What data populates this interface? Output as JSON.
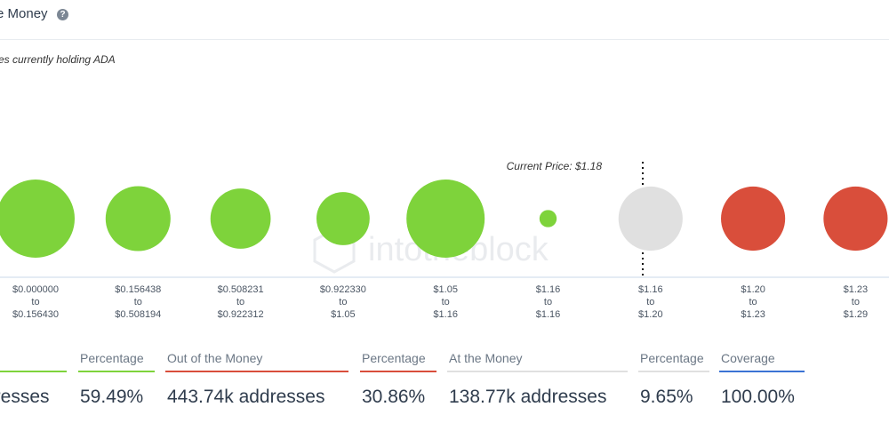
{
  "header": {
    "title": "e Money",
    "help_icon": "question-icon"
  },
  "subtitle": "es currently holding ADA",
  "stray_tick": "ı",
  "chart_data": {
    "type": "bubble",
    "current_price_label": "Current Price: $1.18",
    "watermark": "intotheblock",
    "categories": [
      [
        "$0.000000",
        "to",
        "$0.156430"
      ],
      [
        "$0.156438",
        "to",
        "$0.508194"
      ],
      [
        "$0.508231",
        "to",
        "$0.922312"
      ],
      [
        "$0.922330",
        "to",
        "$1.05"
      ],
      [
        "$1.05",
        "to",
        "$1.16"
      ],
      [
        "$1.16",
        "to",
        "$1.16"
      ],
      [
        "$1.16",
        "to",
        "$1.20"
      ],
      [
        "$1.20",
        "to",
        "$1.23"
      ],
      [
        "$1.23",
        "to",
        "$1.29"
      ]
    ],
    "status": [
      "in",
      "in",
      "in",
      "in",
      "in",
      "in",
      "at",
      "out",
      "out"
    ],
    "relative_size": [
      1.0,
      0.83,
      0.77,
      0.68,
      1.0,
      0.22,
      0.82,
      0.82,
      0.82
    ],
    "colors": {
      "in": "#7ed33b",
      "at": "#e0e0e0",
      "out": "#d94e3b"
    }
  },
  "stats": [
    {
      "label": "",
      "value": "dresses",
      "color": "#7ed33b"
    },
    {
      "label": "Percentage",
      "value": "59.49%",
      "color": "#7ed33b"
    },
    {
      "label": "Out of the Money",
      "value": "443.74k addresses",
      "color": "#d94e3b"
    },
    {
      "label": "Percentage",
      "value": "30.86%",
      "color": "#d94e3b"
    },
    {
      "label": "At the Money",
      "value": "138.77k addresses",
      "color": "#e0e0e0"
    },
    {
      "label": "Percentage",
      "value": "9.65%",
      "color": "#e0e0e0"
    },
    {
      "label": "Coverage",
      "value": "100.00%",
      "color": "#3b73d4"
    }
  ]
}
